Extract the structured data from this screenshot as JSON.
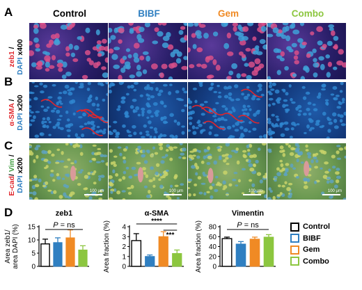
{
  "panels": {
    "A": "A",
    "B": "B",
    "C": "C",
    "D": "D"
  },
  "columns": [
    {
      "label": "Control",
      "color": "#000000"
    },
    {
      "label": "BIBF",
      "color": "#2f7fc1"
    },
    {
      "label": "Gem",
      "color": "#f08a24"
    },
    {
      "label": "Combo",
      "color": "#8cc63f"
    }
  ],
  "rows": {
    "A": {
      "stain": "zeb1",
      "slash": " / ",
      "dapi": "DAPI",
      "mag": " x400"
    },
    "B": {
      "stain": "α-SMA",
      "slash": " / ",
      "dapi": "DAPI",
      "mag": " x200"
    },
    "C": {
      "ecad": "E-cad",
      "slash1": "/ ",
      "vim": "Vim",
      "slash2": " /",
      "dapi": "DAPI",
      "mag": " x200"
    }
  },
  "scale_bar": "100 μm",
  "colors": {
    "red": "#e0262c",
    "blue": "#2f7fc1",
    "green": "#3a9a3a",
    "orange": "#f08a24",
    "lightgreen": "#8cc63f"
  },
  "legend": [
    {
      "label": "Control",
      "color": "#000000"
    },
    {
      "label": "BIBF",
      "color": "#2f7fc1"
    },
    {
      "label": "Gem",
      "color": "#f08a24"
    },
    {
      "label": "Combo",
      "color": "#8cc63f"
    }
  ],
  "chart_data": [
    {
      "type": "bar",
      "title": "zeb1",
      "ylabel_line1": "Area zeb1/",
      "ylabel_line2": "area DAPI (%)",
      "categories": [
        "Control",
        "BIBF",
        "Gem",
        "Combo"
      ],
      "values": [
        8.5,
        9.0,
        10.8,
        6.2
      ],
      "errors": [
        1.8,
        1.8,
        3.0,
        1.6
      ],
      "ylim": [
        0,
        15
      ],
      "yticks": [
        "0",
        "5",
        "10",
        "15"
      ],
      "annotation": "P = ns",
      "annotation_p": "P",
      "annotation_rest": " = ns"
    },
    {
      "type": "bar",
      "title": "α-SMA",
      "ylabel_line1": "Area fraction (%)",
      "categories": [
        "Control",
        "BIBF",
        "Gem",
        "Combo"
      ],
      "values": [
        2.6,
        1.0,
        3.0,
        1.3
      ],
      "errors": [
        0.7,
        0.15,
        0.5,
        0.35
      ],
      "ylim": [
        0,
        4
      ],
      "yticks": [
        "0",
        "1",
        "2",
        "3",
        "4"
      ],
      "sig_top": "****",
      "sig_inner": "***"
    },
    {
      "type": "bar",
      "title": "Vimentin",
      "ylabel_line1": "Area fraction (%)",
      "categories": [
        "Control",
        "BIBF",
        "Gem",
        "Combo"
      ],
      "values": [
        56,
        45,
        55,
        59
      ],
      "errors": [
        3,
        5,
        4,
        5
      ],
      "ylim": [
        0,
        80
      ],
      "yticks": [
        "0",
        "20",
        "40",
        "60",
        "80"
      ],
      "annotation": "P = ns",
      "annotation_p": "P",
      "annotation_rest": " = ns"
    }
  ]
}
